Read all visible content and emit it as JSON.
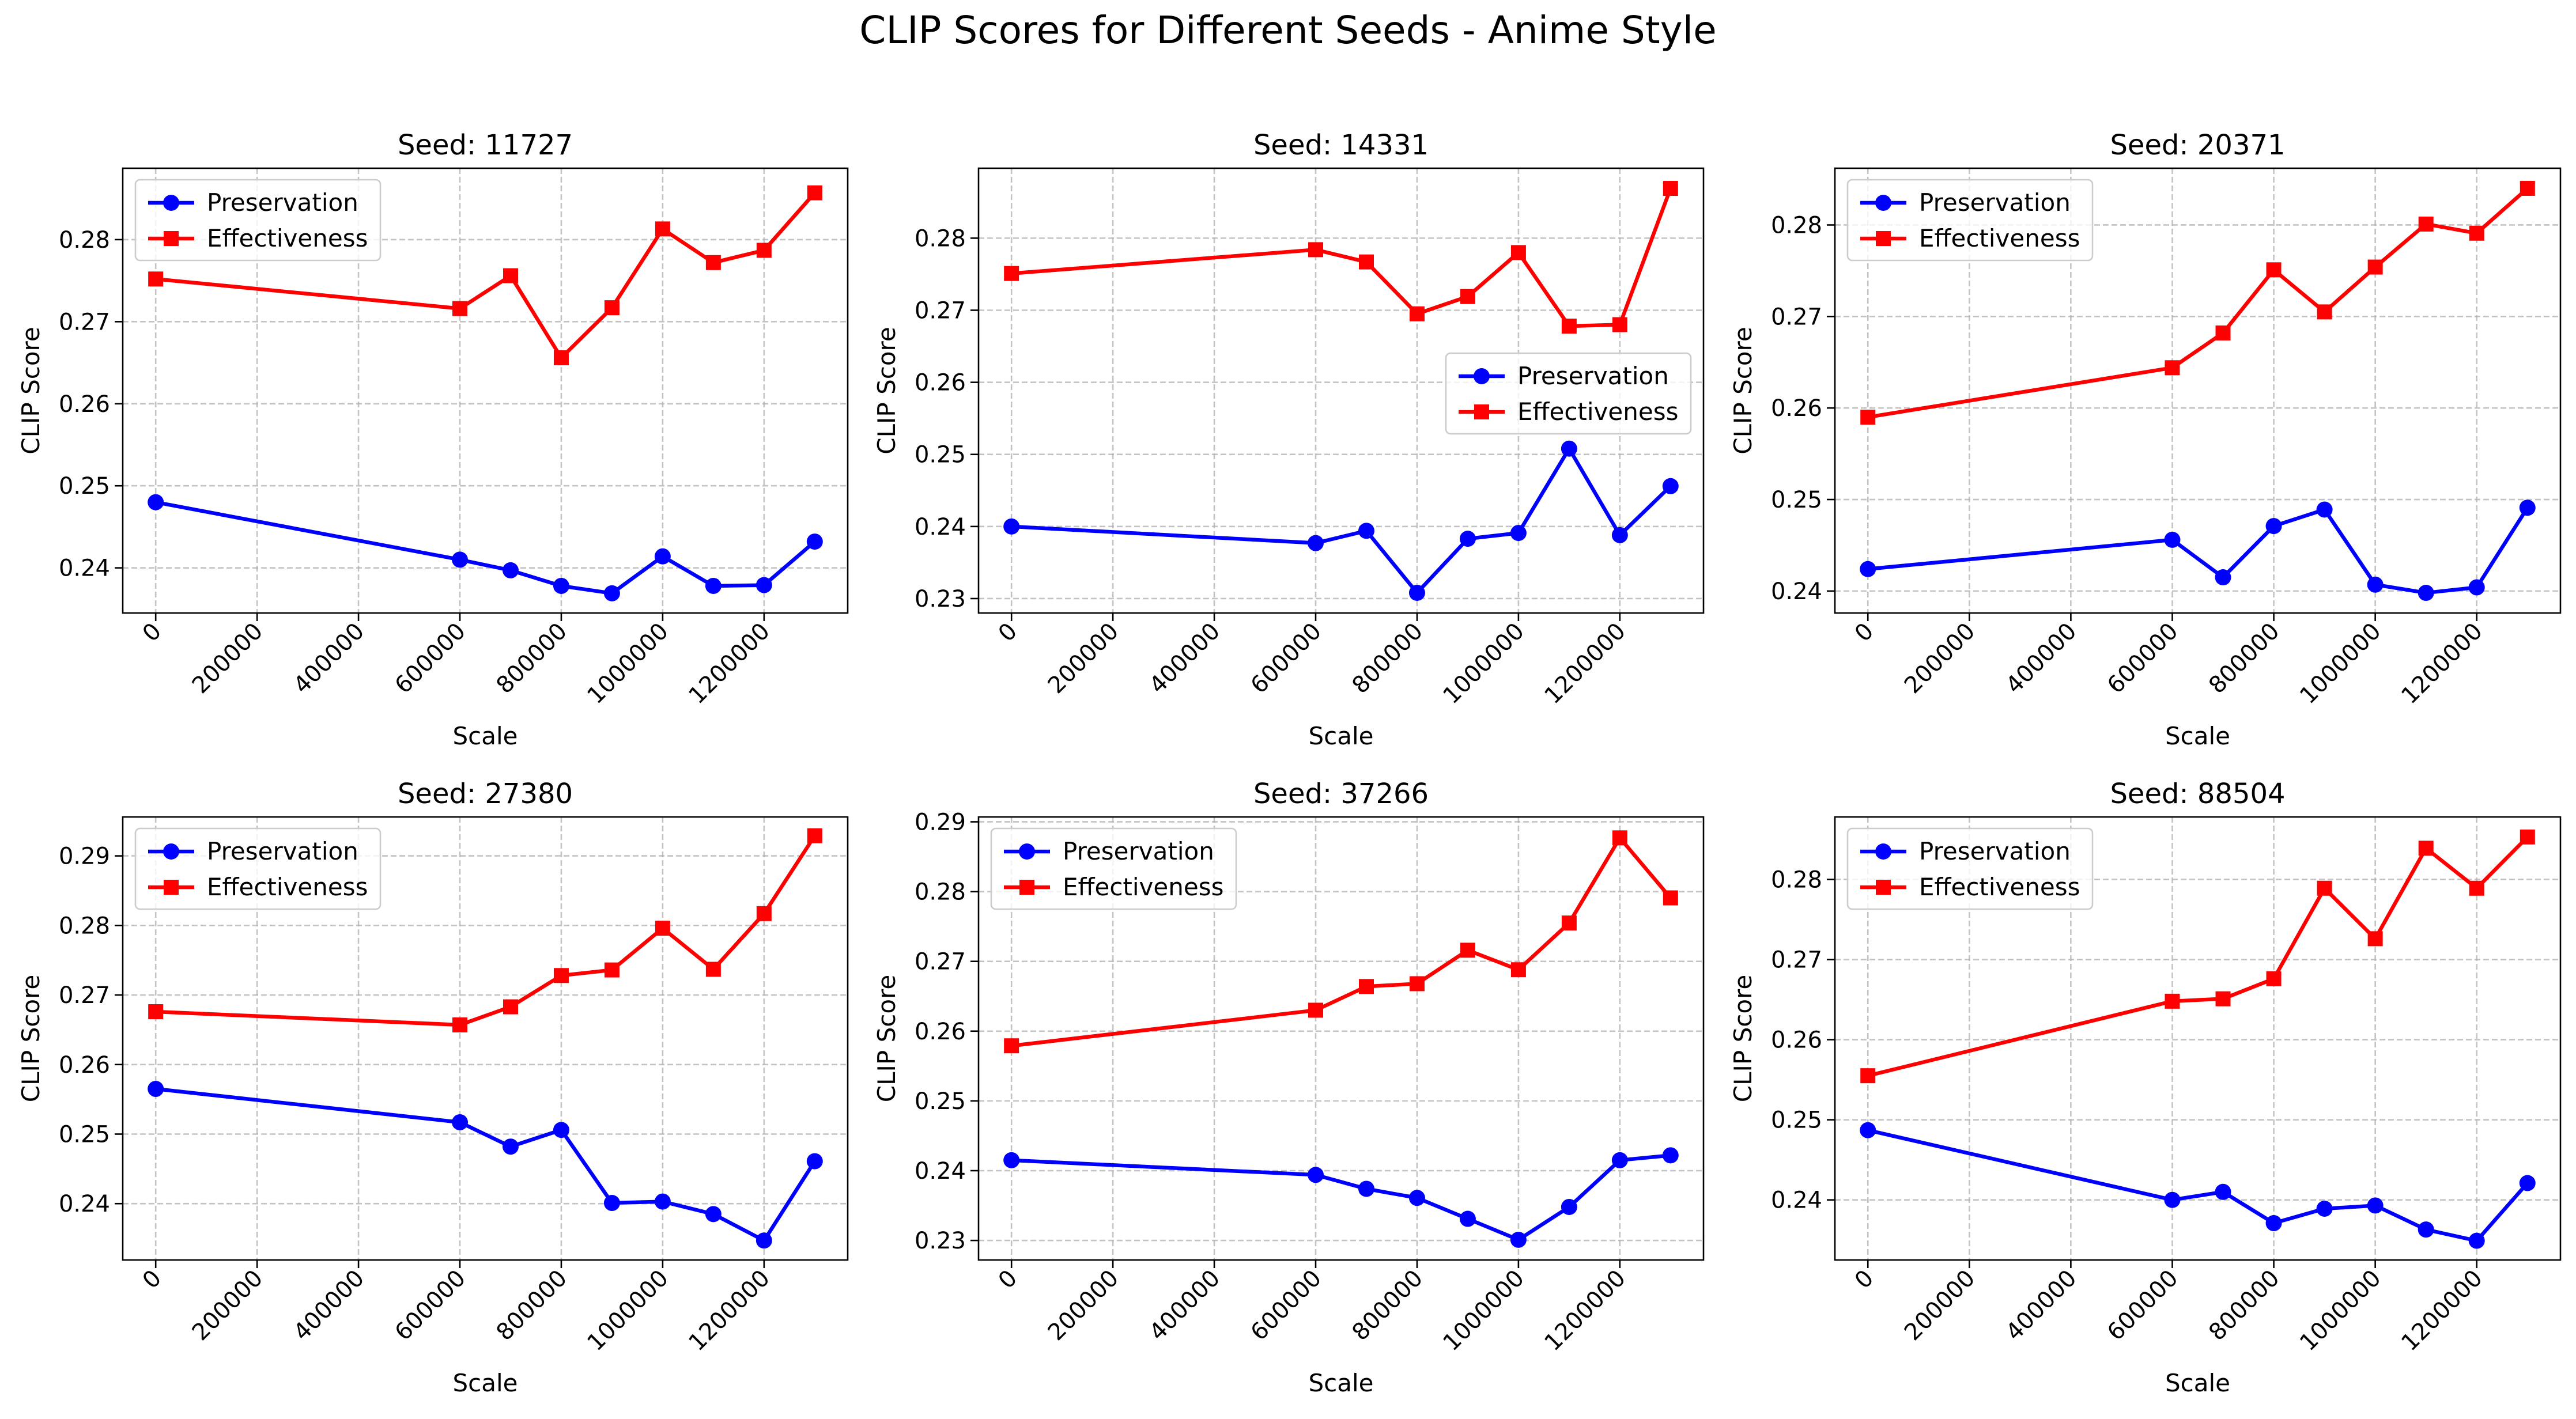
{
  "title": "CLIP Scores for Different Seeds - Anime Style",
  "colors": {
    "Preservation": "#0000ff",
    "Effectiveness": "#ff0000"
  },
  "chart_data": [
    {
      "type": "line",
      "title": "Seed: 11727",
      "xlabel": "Scale",
      "ylabel": "CLIP Score",
      "x": [
        0,
        600000,
        700000,
        800000,
        900000,
        1000000,
        1100000,
        1200000,
        1300000
      ],
      "x_ticks": [
        0,
        200000,
        400000,
        600000,
        800000,
        1000000,
        1200000
      ],
      "y_ticks": [
        0.24,
        0.25,
        0.26,
        0.27,
        0.28
      ],
      "ylim": [
        0.2345,
        0.2887
      ],
      "grid": true,
      "legend": "upper left",
      "series": [
        {
          "name": "Preservation",
          "marker": "circle",
          "values": [
            0.248,
            0.241,
            0.2397,
            0.2378,
            0.2369,
            0.2414,
            0.2378,
            0.2379,
            0.2432
          ]
        },
        {
          "name": "Effectiveness",
          "marker": "square",
          "values": [
            0.2752,
            0.2716,
            0.2756,
            0.2656,
            0.2717,
            0.2813,
            0.2772,
            0.2787,
            0.2857
          ]
        }
      ]
    },
    {
      "type": "line",
      "title": "Seed: 14331",
      "xlabel": "Scale",
      "ylabel": "CLIP Score",
      "x": [
        0,
        600000,
        700000,
        800000,
        900000,
        1000000,
        1100000,
        1200000,
        1300000
      ],
      "x_ticks": [
        0,
        200000,
        400000,
        600000,
        800000,
        1000000,
        1200000
      ],
      "y_ticks": [
        0.23,
        0.24,
        0.25,
        0.26,
        0.27,
        0.28
      ],
      "ylim": [
        0.228,
        0.2897
      ],
      "grid": true,
      "legend": "center right",
      "series": [
        {
          "name": "Preservation",
          "marker": "circle",
          "values": [
            0.24,
            0.2377,
            0.2394,
            0.2308,
            0.2383,
            0.2391,
            0.2508,
            0.2388,
            0.2456
          ]
        },
        {
          "name": "Effectiveness",
          "marker": "square",
          "values": [
            0.2751,
            0.2784,
            0.2767,
            0.2695,
            0.2719,
            0.278,
            0.2678,
            0.268,
            0.2869
          ]
        }
      ]
    },
    {
      "type": "line",
      "title": "Seed: 20371",
      "xlabel": "Scale",
      "ylabel": "CLIP Score",
      "x": [
        0,
        600000,
        700000,
        800000,
        900000,
        1000000,
        1100000,
        1200000,
        1300000
      ],
      "x_ticks": [
        0,
        200000,
        400000,
        600000,
        800000,
        1000000,
        1200000
      ],
      "y_ticks": [
        0.24,
        0.25,
        0.26,
        0.27,
        0.28
      ],
      "ylim": [
        0.2376,
        0.2862
      ],
      "grid": true,
      "legend": "upper left",
      "series": [
        {
          "name": "Preservation",
          "marker": "circle",
          "values": [
            0.2424,
            0.2456,
            0.2415,
            0.2471,
            0.2489,
            0.2407,
            0.2398,
            0.2404,
            0.2491
          ]
        },
        {
          "name": "Effectiveness",
          "marker": "square",
          "values": [
            0.259,
            0.2644,
            0.2682,
            0.2751,
            0.2705,
            0.2754,
            0.2801,
            0.2791,
            0.284
          ]
        }
      ]
    },
    {
      "type": "line",
      "title": "Seed: 27380",
      "xlabel": "Scale",
      "ylabel": "CLIP Score",
      "x": [
        0,
        600000,
        700000,
        800000,
        900000,
        1000000,
        1100000,
        1200000,
        1300000
      ],
      "x_ticks": [
        0,
        200000,
        400000,
        600000,
        800000,
        1000000,
        1200000
      ],
      "y_ticks": [
        0.24,
        0.25,
        0.26,
        0.27,
        0.28,
        0.29
      ],
      "ylim": [
        0.2319,
        0.2956
      ],
      "grid": true,
      "legend": "upper left",
      "series": [
        {
          "name": "Preservation",
          "marker": "circle",
          "values": [
            0.2565,
            0.2517,
            0.2482,
            0.2506,
            0.2401,
            0.2403,
            0.2385,
            0.2347,
            0.2461
          ]
        },
        {
          "name": "Effectiveness",
          "marker": "square",
          "values": [
            0.2676,
            0.2657,
            0.2683,
            0.2728,
            0.2736,
            0.2796,
            0.2737,
            0.2817,
            0.2929
          ]
        }
      ]
    },
    {
      "type": "line",
      "title": "Seed: 37266",
      "xlabel": "Scale",
      "ylabel": "CLIP Score",
      "x": [
        0,
        600000,
        700000,
        800000,
        900000,
        1000000,
        1100000,
        1200000,
        1300000
      ],
      "x_ticks": [
        0,
        200000,
        400000,
        600000,
        800000,
        1000000,
        1200000
      ],
      "y_ticks": [
        0.23,
        0.24,
        0.25,
        0.26,
        0.27,
        0.28,
        0.29
      ],
      "ylim": [
        0.2272,
        0.2907
      ],
      "grid": true,
      "legend": "upper left",
      "series": [
        {
          "name": "Preservation",
          "marker": "circle",
          "values": [
            0.2415,
            0.2394,
            0.2374,
            0.2361,
            0.2331,
            0.2301,
            0.2348,
            0.2415,
            0.2422
          ]
        },
        {
          "name": "Effectiveness",
          "marker": "square",
          "values": [
            0.2579,
            0.263,
            0.2664,
            0.2668,
            0.2716,
            0.2688,
            0.2755,
            0.2877,
            0.2791
          ]
        }
      ]
    },
    {
      "type": "line",
      "title": "Seed: 88504",
      "xlabel": "Scale",
      "ylabel": "CLIP Score",
      "x": [
        0,
        600000,
        700000,
        800000,
        900000,
        1000000,
        1100000,
        1200000,
        1300000
      ],
      "x_ticks": [
        0,
        200000,
        400000,
        600000,
        800000,
        1000000,
        1200000
      ],
      "y_ticks": [
        0.24,
        0.25,
        0.26,
        0.27,
        0.28
      ],
      "ylim": [
        0.2325,
        0.2878
      ],
      "grid": true,
      "legend": "upper left",
      "series": [
        {
          "name": "Preservation",
          "marker": "circle",
          "values": [
            0.2487,
            0.24,
            0.241,
            0.2371,
            0.2389,
            0.2393,
            0.2363,
            0.2349,
            0.2421
          ]
        },
        {
          "name": "Effectiveness",
          "marker": "square",
          "values": [
            0.2555,
            0.2648,
            0.2651,
            0.2676,
            0.2789,
            0.2726,
            0.2839,
            0.2789,
            0.2853
          ]
        }
      ]
    }
  ]
}
